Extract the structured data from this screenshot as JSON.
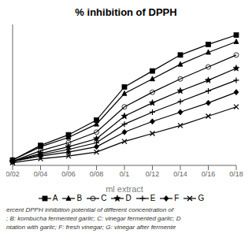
{
  "chart_data": {
    "type": "line",
    "title": "% inhibition of DPPH",
    "xlabel": "ml extract",
    "categories": [
      "0/02",
      "0/04",
      "0/06",
      "0/08",
      "0/1",
      "0/12",
      "0/14",
      "0/16",
      "0/18"
    ],
    "series": [
      {
        "name": "A",
        "color": "#000000",
        "marker": "square",
        "values": [
          3,
          14,
          22,
          33,
          58,
          70,
          82,
          90,
          97
        ]
      },
      {
        "name": "B",
        "color": "#000000",
        "marker": "triangle",
        "values": [
          3,
          13,
          20,
          30,
          53,
          64,
          75,
          84,
          92
        ]
      },
      {
        "name": "C",
        "color": "#000000",
        "marker": "open_circle",
        "values": [
          2,
          10,
          16,
          24,
          43,
          54,
          64,
          73,
          82
        ]
      },
      {
        "name": "D",
        "color": "#000000",
        "marker": "star",
        "values": [
          2,
          8,
          13,
          19,
          36,
          46,
          55,
          63,
          72
        ]
      },
      {
        "name": "E",
        "color": "#000000",
        "marker": "plus",
        "values": [
          2,
          7,
          11,
          16,
          30,
          39,
          47,
          55,
          63
        ]
      },
      {
        "name": "F",
        "color": "#000000",
        "marker": "diamond",
        "values": [
          2,
          6,
          9,
          13,
          24,
          32,
          39,
          46,
          54
        ]
      },
      {
        "name": "G",
        "color": "#000000",
        "marker": "cross",
        "values": [
          1,
          4,
          6,
          9,
          17,
          23,
          29,
          36,
          43
        ]
      }
    ],
    "ylim": [
      -1,
      105
    ],
    "tick_labels": "x",
    "grid": false,
    "legend": "bottom",
    "annotations": [
      "ercent DPPH inhibition potential of different concentration of",
      "; B: kombucha fermented garlic; C: vinegar fermented garlic; D",
      "ntation with garlic; F: fresh vinegar; G: vinegar after fermente"
    ]
  }
}
